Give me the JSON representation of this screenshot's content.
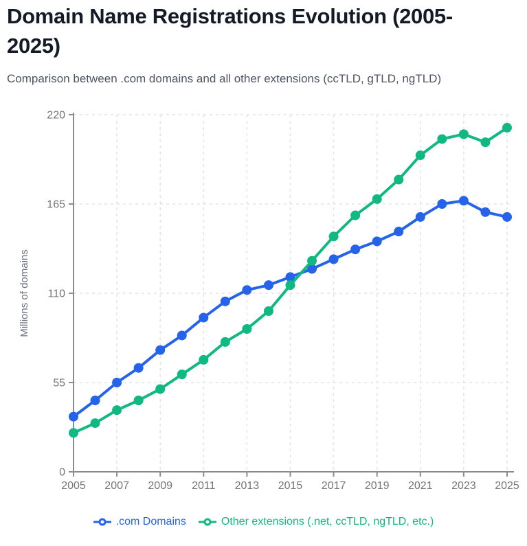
{
  "header": {
    "title": "Domain Name Registrations Evolution (2005-2025)",
    "subtitle": "Comparison between .com domains and all other extensions (ccTLD, gTLD, ngTLD)"
  },
  "chart_data": {
    "type": "line",
    "title": "Domain Name Registrations Evolution (2005-2025)",
    "xlabel": "",
    "ylabel": "Millions of domains",
    "ylim": [
      0,
      220
    ],
    "yticks": [
      0,
      55,
      110,
      165,
      220
    ],
    "xticks": [
      2005,
      2007,
      2009,
      2011,
      2013,
      2015,
      2017,
      2019,
      2021,
      2023,
      2025
    ],
    "grid": true,
    "legend_position": "bottom",
    "x": [
      2005,
      2006,
      2007,
      2008,
      2009,
      2010,
      2011,
      2012,
      2013,
      2014,
      2015,
      2016,
      2017,
      2018,
      2019,
      2020,
      2021,
      2022,
      2023,
      2024,
      2025
    ],
    "series": [
      {
        "name": ".com Domains",
        "color": "#2563eb",
        "values": [
          34,
          44,
          55,
          64,
          75,
          84,
          95,
          105,
          112,
          115,
          120,
          125,
          131,
          137,
          142,
          148,
          157,
          165,
          167,
          160,
          157
        ]
      },
      {
        "name": "Other extensions (.net, ccTLD, ngTLD, etc.)",
        "color": "#10b981",
        "values": [
          24,
          30,
          38,
          44,
          51,
          60,
          69,
          80,
          88,
          99,
          115,
          130,
          145,
          158,
          168,
          180,
          195,
          205,
          208,
          203,
          212
        ]
      }
    ]
  }
}
